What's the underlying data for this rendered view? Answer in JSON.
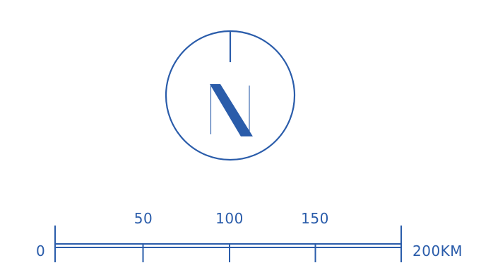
{
  "colors": {
    "accent": "#2a5caa",
    "background": "#ffffff"
  },
  "north_arrow": {
    "letter": "N",
    "icon": "north-arrow-compass-icon"
  },
  "scale_bar": {
    "icon": "scale-bar-icon",
    "labels": {
      "zero": "0",
      "fifty": "50",
      "hundred": "100",
      "one_fifty": "150",
      "end": "200KM"
    }
  }
}
